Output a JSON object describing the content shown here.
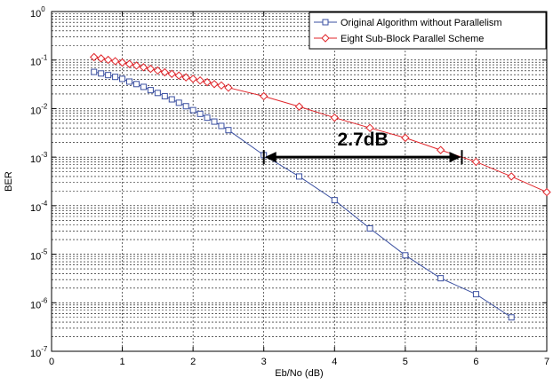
{
  "chart_data": {
    "type": "line",
    "xlabel": "Eb/No (dB)",
    "ylabel": "BER",
    "xlim": [
      0,
      7
    ],
    "ylim": [
      1e-07,
      1
    ],
    "y_scale": "log",
    "grid": true,
    "legend_position": "top-right",
    "x_ticks": [
      {
        "value": 0,
        "label": "0"
      },
      {
        "value": 1,
        "label": "1"
      },
      {
        "value": 2,
        "label": "2"
      },
      {
        "value": 3,
        "label": "3"
      },
      {
        "value": 4,
        "label": "4"
      },
      {
        "value": 5,
        "label": "5"
      },
      {
        "value": 6,
        "label": "6"
      },
      {
        "value": 7,
        "label": "7"
      }
    ],
    "y_ticks": [
      {
        "value": 1,
        "base": "10",
        "exp": "0"
      },
      {
        "value": 0.1,
        "base": "10",
        "exp": "-1"
      },
      {
        "value": 0.01,
        "base": "10",
        "exp": "-2"
      },
      {
        "value": 0.001,
        "base": "10",
        "exp": "-3"
      },
      {
        "value": 0.0001,
        "base": "10",
        "exp": "-4"
      },
      {
        "value": 1e-05,
        "base": "10",
        "exp": "-5"
      },
      {
        "value": 1e-06,
        "base": "10",
        "exp": "-6"
      },
      {
        "value": 1e-07,
        "base": "10",
        "exp": "-7"
      }
    ],
    "series": [
      {
        "name": "Original Algorithm without Parallelism",
        "color": "#3a4fa0",
        "marker": "square",
        "x": [
          0.6,
          0.7,
          0.8,
          0.9,
          1.0,
          1.1,
          1.2,
          1.3,
          1.4,
          1.5,
          1.6,
          1.7,
          1.8,
          1.9,
          2.0,
          2.1,
          2.2,
          2.3,
          2.4,
          2.5,
          3.0,
          3.5,
          4.0,
          4.5,
          5.0,
          5.5,
          6.0,
          6.5
        ],
        "y": [
          0.057,
          0.053,
          0.049,
          0.045,
          0.041,
          0.036,
          0.032,
          0.028,
          0.024,
          0.021,
          0.018,
          0.0155,
          0.0132,
          0.0112,
          0.0093,
          0.0078,
          0.0065,
          0.0054,
          0.0044,
          0.0036,
          0.0011,
          0.0004,
          0.00013,
          3.4e-05,
          9.5e-06,
          3.2e-06,
          1.5e-06,
          5e-07
        ]
      },
      {
        "name": "Eight Sub-Block Parallel Scheme",
        "color": "#e0262b",
        "marker": "diamond",
        "x": [
          0.6,
          0.7,
          0.8,
          0.9,
          1.0,
          1.1,
          1.2,
          1.3,
          1.4,
          1.5,
          1.6,
          1.7,
          1.8,
          1.9,
          2.0,
          2.1,
          2.2,
          2.3,
          2.4,
          2.5,
          3.0,
          3.5,
          4.0,
          4.5,
          5.0,
          5.5,
          6.0,
          6.5,
          7.0
        ],
        "y": [
          0.115,
          0.108,
          0.101,
          0.095,
          0.089,
          0.083,
          0.077,
          0.071,
          0.066,
          0.061,
          0.056,
          0.052,
          0.048,
          0.044,
          0.041,
          0.038,
          0.035,
          0.032,
          0.03,
          0.027,
          0.018,
          0.011,
          0.0065,
          0.004,
          0.0025,
          0.0014,
          0.0008,
          0.0004,
          0.00019
        ]
      }
    ],
    "annotation": {
      "text": "2.7dB",
      "from": {
        "x": 3.0,
        "y": 0.001
      },
      "to": {
        "x": 5.8,
        "y": 0.001
      }
    }
  }
}
